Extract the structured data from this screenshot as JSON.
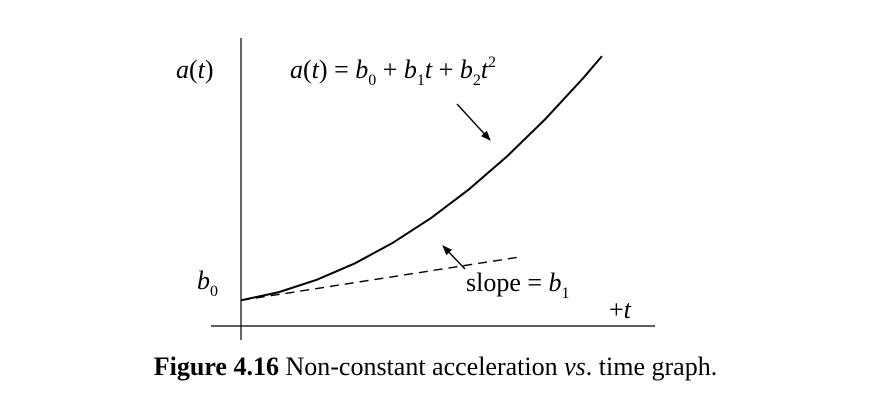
{
  "figure": {
    "caption": {
      "number": "Figure 4.16",
      "text_before": "Non-constant acceleration",
      "vs": "vs",
      "text_after": ". time graph."
    }
  },
  "chart_data": {
    "type": "line",
    "title": "",
    "ylabel": "a(t)",
    "xlabel": "+t",
    "y_intercept_label": "b0",
    "xlim": [
      0,
      10
    ],
    "ylim": [
      0,
      10
    ],
    "grid": false,
    "legend": "none",
    "series": [
      {
        "style": "solid",
        "x": [
          0,
          1,
          2,
          3,
          4,
          5,
          6,
          7,
          8,
          9,
          9.5
        ],
        "y": [
          1.0,
          1.32,
          1.8,
          2.44,
          3.24,
          4.2,
          5.32,
          6.6,
          8.04,
          9.64,
          10.5
        ]
      },
      {
        "style": "dashed",
        "x": [
          0,
          7.4
        ],
        "y": [
          1.0,
          2.7
        ]
      }
    ],
    "annotations": [
      {
        "id": "curve-equation",
        "target": "curve",
        "parts": [
          {
            "t": "a",
            "style": "italic"
          },
          {
            "t": "(",
            "style": "normal"
          },
          {
            "t": "t",
            "style": "italic"
          },
          {
            "t": ") = ",
            "style": "normal"
          },
          {
            "t": "b",
            "style": "italic"
          },
          {
            "t": "0",
            "style": "sub"
          },
          {
            "t": " + ",
            "style": "normal"
          },
          {
            "t": "b",
            "style": "italic"
          },
          {
            "t": "1",
            "style": "sub"
          },
          {
            "t": "t",
            "style": "italic"
          },
          {
            "t": " + ",
            "style": "normal"
          },
          {
            "t": "b",
            "style": "italic"
          },
          {
            "t": "2",
            "style": "sub"
          },
          {
            "t": "t",
            "style": "italic"
          },
          {
            "t": "2",
            "style": "sup"
          }
        ]
      },
      {
        "id": "slope-label",
        "target": "tangent",
        "parts": [
          {
            "t": "slope = ",
            "style": "normal"
          },
          {
            "t": "b",
            "style": "italic"
          },
          {
            "t": "1",
            "style": "sub"
          }
        ]
      }
    ]
  }
}
